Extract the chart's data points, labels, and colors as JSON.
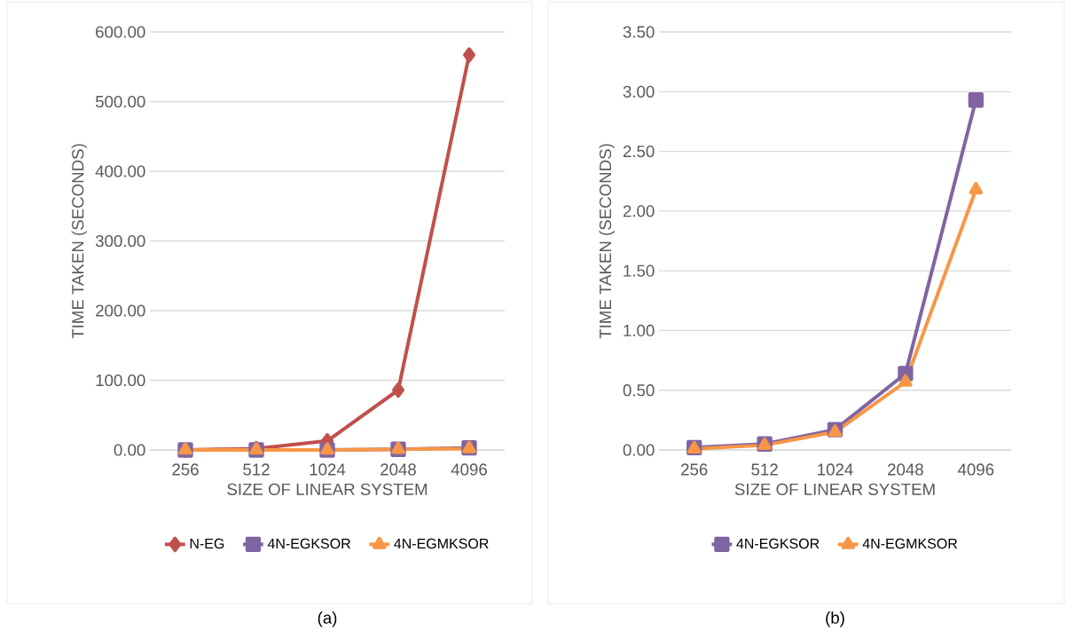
{
  "chart_data": [
    {
      "type": "line",
      "xlabel": "SIZE OF LINEAR SYSTEM",
      "ylabel": "TIME TAKEN (SECONDS)",
      "categories": [
        "256",
        "512",
        "1024",
        "2048",
        "4096"
      ],
      "series": [
        {
          "name": "N-EG",
          "color": "#c0504d",
          "marker": "diamond",
          "values": [
            0,
            2,
            13,
            86,
            567
          ]
        },
        {
          "name": "4N-EGKSOR",
          "color": "#8064a2",
          "marker": "square",
          "values": [
            0,
            0,
            0,
            1,
            3
          ]
        },
        {
          "name": "4N-EGMKSOR",
          "color": "#f79646",
          "marker": "triangle",
          "values": [
            0,
            0,
            0,
            1,
            2
          ]
        }
      ],
      "ylim": [
        0,
        600
      ],
      "yticks": [
        {
          "value": 0,
          "label": "0.00"
        },
        {
          "value": 100,
          "label": "100.00"
        },
        {
          "value": 200,
          "label": "200.00"
        },
        {
          "value": 300,
          "label": "300.00"
        },
        {
          "value": 400,
          "label": "400.00"
        },
        {
          "value": 500,
          "label": "500.00"
        },
        {
          "value": 600,
          "label": "600.00"
        }
      ],
      "grid": "y",
      "legend": "bottom",
      "annotations": [
        "(a)"
      ]
    },
    {
      "type": "line",
      "xlabel": "SIZE OF LINEAR SYSTEM",
      "ylabel": "TIME TAKEN (SECONDS)",
      "categories": [
        "256",
        "512",
        "1024",
        "2048",
        "4096"
      ],
      "series": [
        {
          "name": "4N-EGKSOR",
          "color": "#8064a2",
          "marker": "square",
          "values": [
            0.02,
            0.05,
            0.17,
            0.64,
            2.93
          ]
        },
        {
          "name": "4N-EGMKSOR",
          "color": "#f79646",
          "marker": "triangle",
          "values": [
            0.01,
            0.04,
            0.15,
            0.57,
            2.18
          ]
        }
      ],
      "ylim": [
        0,
        3.5
      ],
      "yticks": [
        {
          "value": 0,
          "label": "0.00"
        },
        {
          "value": 0.5,
          "label": "0.50"
        },
        {
          "value": 1,
          "label": "1.00"
        },
        {
          "value": 1.5,
          "label": "1.50"
        },
        {
          "value": 2,
          "label": "2.00"
        },
        {
          "value": 2.5,
          "label": "2.50"
        },
        {
          "value": 3,
          "label": "3.00"
        },
        {
          "value": 3.5,
          "label": "3.50"
        }
      ],
      "grid": "y",
      "legend": "bottom",
      "annotations": [
        "(b)"
      ]
    }
  ]
}
